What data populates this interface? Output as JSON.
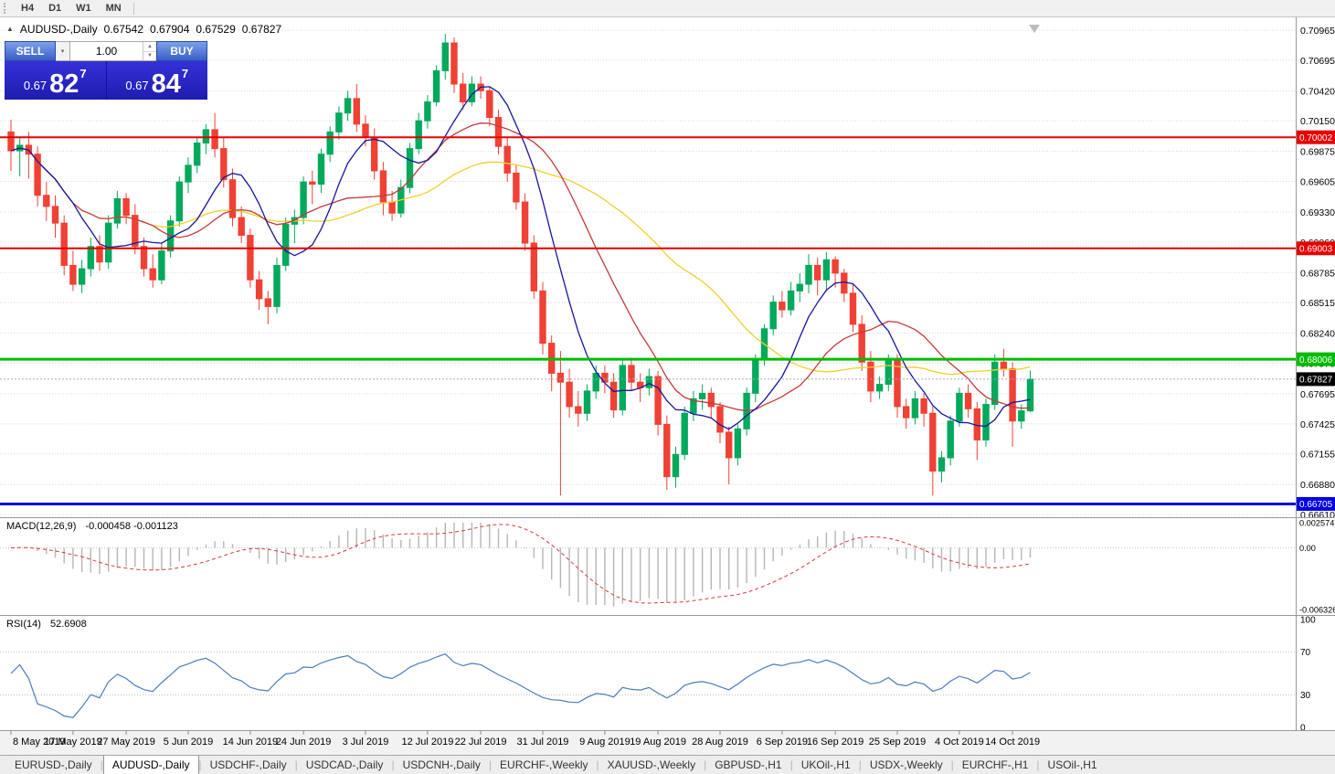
{
  "window": {
    "timeframes": [
      "H4",
      "D1",
      "W1",
      "MN"
    ]
  },
  "chart": {
    "symbol_label": "AUDUSD-,Daily",
    "ohlc": {
      "open": "0.67542",
      "high": "0.67904",
      "low": "0.67529",
      "close": "0.67827"
    },
    "trade_panel": {
      "sell_label": "SELL",
      "buy_label": "BUY",
      "volume": "1.00",
      "sell_price_small": "0.67",
      "sell_price_big": "82",
      "sell_price_sup": "7",
      "buy_price_small": "0.67",
      "buy_price_big": "84",
      "buy_price_sup": "7"
    }
  },
  "chart_data": {
    "type": "candlestick",
    "symbol": "AUDUSD",
    "timeframe": "Daily",
    "title": "AUDUSD-,Daily 0.67542 0.67904 0.67529 0.67827",
    "current_price": 0.67827,
    "price_axis_labels": [
      "0.70965",
      "0.70695",
      "0.70420",
      "0.70150",
      "0.69875",
      "0.69605",
      "0.69330",
      "0.69060",
      "0.68785",
      "0.68515",
      "0.68240",
      "0.67970",
      "0.67695",
      "0.67425",
      "0.67155",
      "0.66880",
      "0.66610"
    ],
    "price_range": [
      0.6661,
      0.70965
    ],
    "horizontal_lines": [
      {
        "price": 0.70002,
        "color": "#e60000",
        "width": 2
      },
      {
        "price": 0.69003,
        "color": "#e60000",
        "width": 2
      },
      {
        "price": 0.68006,
        "color": "#00bb00",
        "width": 3
      },
      {
        "price": 0.66705,
        "color": "#0000e0",
        "width": 3
      }
    ],
    "moving_averages": [
      {
        "name": "slow",
        "period": 34,
        "color": "#f0d02c"
      },
      {
        "name": "medium",
        "period": 17,
        "color": "#c23b3b"
      },
      {
        "name": "fast",
        "period": 8,
        "color": "#16169e"
      }
    ],
    "date_axis": [
      {
        "label": "8 May 2019",
        "index": 0
      },
      {
        "label": "17 May 2019",
        "index": 7
      },
      {
        "label": "27 May 2019",
        "index": 13
      },
      {
        "label": "5 Jun 2019",
        "index": 20
      },
      {
        "label": "14 Jun 2019",
        "index": 27
      },
      {
        "label": "24 Jun 2019",
        "index": 33
      },
      {
        "label": "3 Jul 2019",
        "index": 40
      },
      {
        "label": "12 Jul 2019",
        "index": 47
      },
      {
        "label": "22 Jul 2019",
        "index": 53
      },
      {
        "label": "31 Jul 2019",
        "index": 60
      },
      {
        "label": "9 Aug 2019",
        "index": 67
      },
      {
        "label": "19 Aug 2019",
        "index": 73
      },
      {
        "label": "28 Aug 2019",
        "index": 80
      },
      {
        "label": "6 Sep 2019",
        "index": 87
      },
      {
        "label": "16 Sep 2019",
        "index": 93
      },
      {
        "label": "25 Sep 2019",
        "index": 100
      },
      {
        "label": "4 Oct 2019",
        "index": 107
      },
      {
        "label": "14 Oct 2019",
        "index": 113
      }
    ],
    "candles": [
      [
        "2019-05-08",
        0.7005,
        0.7016,
        0.697,
        0.6988
      ],
      [
        "2019-05-09",
        0.6988,
        0.7,
        0.6965,
        0.6993
      ],
      [
        "2019-05-10",
        0.6993,
        0.7005,
        0.6963,
        0.6985
      ],
      [
        "2019-05-13",
        0.6985,
        0.6992,
        0.6938,
        0.6948
      ],
      [
        "2019-05-14",
        0.6948,
        0.696,
        0.6925,
        0.6938
      ],
      [
        "2019-05-15",
        0.6938,
        0.6948,
        0.691,
        0.6923
      ],
      [
        "2019-05-16",
        0.6923,
        0.693,
        0.6876,
        0.6885
      ],
      [
        "2019-05-17",
        0.6885,
        0.6898,
        0.6862,
        0.6868
      ],
      [
        "2019-05-20",
        0.6868,
        0.689,
        0.686,
        0.6882
      ],
      [
        "2019-05-21",
        0.6882,
        0.691,
        0.6875,
        0.6902
      ],
      [
        "2019-05-22",
        0.6902,
        0.6912,
        0.688,
        0.6888
      ],
      [
        "2019-05-23",
        0.6888,
        0.693,
        0.6882,
        0.6923
      ],
      [
        "2019-05-24",
        0.6923,
        0.6952,
        0.6918,
        0.6945
      ],
      [
        "2019-05-27",
        0.6945,
        0.695,
        0.6922,
        0.693
      ],
      [
        "2019-05-28",
        0.693,
        0.694,
        0.6895,
        0.6902
      ],
      [
        "2019-05-29",
        0.6902,
        0.691,
        0.6875,
        0.6882
      ],
      [
        "2019-05-30",
        0.6882,
        0.6895,
        0.6865,
        0.6872
      ],
      [
        "2019-05-31",
        0.6872,
        0.6905,
        0.6868,
        0.6898
      ],
      [
        "2019-06-03",
        0.6898,
        0.693,
        0.6892,
        0.6925
      ],
      [
        "2019-06-04",
        0.6925,
        0.6965,
        0.692,
        0.696
      ],
      [
        "2019-06-05",
        0.696,
        0.6982,
        0.695,
        0.6975
      ],
      [
        "2019-06-06",
        0.6975,
        0.7,
        0.6968,
        0.6995
      ],
      [
        "2019-06-07",
        0.6995,
        0.7012,
        0.6985,
        0.7007
      ],
      [
        "2019-06-10",
        0.7007,
        0.7022,
        0.6982,
        0.699
      ],
      [
        "2019-06-11",
        0.699,
        0.7,
        0.6955,
        0.6962
      ],
      [
        "2019-06-12",
        0.6962,
        0.6972,
        0.692,
        0.6928
      ],
      [
        "2019-06-13",
        0.6928,
        0.6938,
        0.6905,
        0.6912
      ],
      [
        "2019-06-14",
        0.6912,
        0.6918,
        0.6865,
        0.6872
      ],
      [
        "2019-06-17",
        0.6872,
        0.688,
        0.6845,
        0.6855
      ],
      [
        "2019-06-18",
        0.6855,
        0.6862,
        0.6832,
        0.6848
      ],
      [
        "2019-06-19",
        0.6848,
        0.6892,
        0.6842,
        0.6885
      ],
      [
        "2019-06-20",
        0.6885,
        0.6928,
        0.688,
        0.6922
      ],
      [
        "2019-06-21",
        0.6922,
        0.6935,
        0.6905,
        0.6928
      ],
      [
        "2019-06-24",
        0.6928,
        0.6965,
        0.6922,
        0.696
      ],
      [
        "2019-06-25",
        0.696,
        0.697,
        0.694,
        0.6958
      ],
      [
        "2019-06-26",
        0.6958,
        0.699,
        0.695,
        0.6985
      ],
      [
        "2019-06-27",
        0.6985,
        0.701,
        0.6978,
        0.7005
      ],
      [
        "2019-06-28",
        0.7005,
        0.7028,
        0.6998,
        0.7022
      ],
      [
        "2019-07-01",
        0.7022,
        0.7042,
        0.7015,
        0.7035
      ],
      [
        "2019-07-02",
        0.7035,
        0.7048,
        0.7005,
        0.7012
      ],
      [
        "2019-07-03",
        0.7012,
        0.702,
        0.6992,
        0.7
      ],
      [
        "2019-07-04",
        0.7,
        0.7008,
        0.6962,
        0.697
      ],
      [
        "2019-07-05",
        0.697,
        0.6978,
        0.693,
        0.6942
      ],
      [
        "2019-07-08",
        0.6942,
        0.6952,
        0.6925,
        0.6932
      ],
      [
        "2019-07-09",
        0.6932,
        0.6962,
        0.6928,
        0.6955
      ],
      [
        "2019-07-10",
        0.6955,
        0.6995,
        0.695,
        0.699
      ],
      [
        "2019-07-11",
        0.699,
        0.7022,
        0.6985,
        0.7015
      ],
      [
        "2019-07-12",
        0.7015,
        0.7038,
        0.7008,
        0.7032
      ],
      [
        "2019-07-15",
        0.7032,
        0.7065,
        0.7028,
        0.706
      ],
      [
        "2019-07-16",
        0.706,
        0.7093,
        0.7052,
        0.7085
      ],
      [
        "2019-07-17",
        0.7085,
        0.709,
        0.704,
        0.7048
      ],
      [
        "2019-07-18",
        0.7048,
        0.7058,
        0.7025,
        0.7032
      ],
      [
        "2019-07-19",
        0.7032,
        0.7055,
        0.7028,
        0.7048
      ],
      [
        "2019-07-22",
        0.7048,
        0.7055,
        0.7035,
        0.7042
      ],
      [
        "2019-07-23",
        0.7042,
        0.7046,
        0.701,
        0.7018
      ],
      [
        "2019-07-24",
        0.7018,
        0.7025,
        0.6985,
        0.6992
      ],
      [
        "2019-07-25",
        0.6992,
        0.7,
        0.696,
        0.6968
      ],
      [
        "2019-07-26",
        0.6968,
        0.6975,
        0.6935,
        0.6942
      ],
      [
        "2019-07-29",
        0.6942,
        0.695,
        0.6898,
        0.6905
      ],
      [
        "2019-07-30",
        0.6905,
        0.6912,
        0.6855,
        0.6862
      ],
      [
        "2019-07-31",
        0.6862,
        0.687,
        0.6805,
        0.6815
      ],
      [
        "2019-08-01",
        0.6815,
        0.6822,
        0.6772,
        0.6788
      ],
      [
        "2019-08-02",
        0.6788,
        0.6808,
        0.6678,
        0.678
      ],
      [
        "2019-08-05",
        0.678,
        0.6792,
        0.6748,
        0.6758
      ],
      [
        "2019-08-06",
        0.6758,
        0.6772,
        0.674,
        0.6752
      ],
      [
        "2019-08-07",
        0.6752,
        0.6778,
        0.6745,
        0.6772
      ],
      [
        "2019-08-08",
        0.6772,
        0.6795,
        0.6765,
        0.6788
      ],
      [
        "2019-08-09",
        0.6788,
        0.6795,
        0.677,
        0.678
      ],
      [
        "2019-08-12",
        0.678,
        0.6788,
        0.6748,
        0.6755
      ],
      [
        "2019-08-13",
        0.6755,
        0.68,
        0.675,
        0.6795
      ],
      [
        "2019-08-14",
        0.6795,
        0.6802,
        0.6772,
        0.678
      ],
      [
        "2019-08-15",
        0.678,
        0.6788,
        0.6762,
        0.6775
      ],
      [
        "2019-08-16",
        0.6775,
        0.6792,
        0.6768,
        0.6785
      ],
      [
        "2019-08-19",
        0.6785,
        0.679,
        0.6732,
        0.6742
      ],
      [
        "2019-08-20",
        0.6742,
        0.675,
        0.6683,
        0.6695
      ],
      [
        "2019-08-21",
        0.6695,
        0.6722,
        0.6685,
        0.6715
      ],
      [
        "2019-08-22",
        0.6715,
        0.6758,
        0.671,
        0.6752
      ],
      [
        "2019-08-23",
        0.6752,
        0.6772,
        0.6745,
        0.6765
      ],
      [
        "2019-08-26",
        0.6765,
        0.6778,
        0.6755,
        0.677
      ],
      [
        "2019-08-27",
        0.677,
        0.6775,
        0.6748,
        0.6758
      ],
      [
        "2019-08-28",
        0.6758,
        0.6762,
        0.6725,
        0.6735
      ],
      [
        "2019-08-29",
        0.6735,
        0.674,
        0.6688,
        0.6712
      ],
      [
        "2019-08-30",
        0.6712,
        0.6742,
        0.6705,
        0.6738
      ],
      [
        "2019-09-02",
        0.6738,
        0.6775,
        0.6732,
        0.677
      ],
      [
        "2019-09-03",
        0.677,
        0.6805,
        0.6762,
        0.68
      ],
      [
        "2019-09-04",
        0.68,
        0.6832,
        0.6795,
        0.6828
      ],
      [
        "2019-09-05",
        0.6828,
        0.6858,
        0.6822,
        0.6852
      ],
      [
        "2019-09-06",
        0.6852,
        0.6862,
        0.6838,
        0.6845
      ],
      [
        "2019-09-09",
        0.6845,
        0.687,
        0.684,
        0.6862
      ],
      [
        "2019-09-10",
        0.6862,
        0.6878,
        0.6852,
        0.6868
      ],
      [
        "2019-09-11",
        0.6868,
        0.6895,
        0.686,
        0.6885
      ],
      [
        "2019-09-12",
        0.6885,
        0.6892,
        0.6858,
        0.6872
      ],
      [
        "2019-09-13",
        0.6872,
        0.6897,
        0.6862,
        0.689
      ],
      [
        "2019-09-16",
        0.689,
        0.6893,
        0.6865,
        0.6878
      ],
      [
        "2019-09-17",
        0.6878,
        0.6882,
        0.6852,
        0.686
      ],
      [
        "2019-09-18",
        0.686,
        0.6868,
        0.6825,
        0.6832
      ],
      [
        "2019-09-19",
        0.6832,
        0.684,
        0.679,
        0.6798
      ],
      [
        "2019-09-20",
        0.6798,
        0.6808,
        0.6762,
        0.6772
      ],
      [
        "2019-09-23",
        0.6772,
        0.6785,
        0.6765,
        0.6778
      ],
      [
        "2019-09-24",
        0.6778,
        0.6805,
        0.6772,
        0.68
      ],
      [
        "2019-09-25",
        0.68,
        0.6805,
        0.6748,
        0.6758
      ],
      [
        "2019-09-26",
        0.6758,
        0.6765,
        0.6738,
        0.6748
      ],
      [
        "2019-09-27",
        0.6748,
        0.6772,
        0.6742,
        0.6765
      ],
      [
        "2019-09-30",
        0.6765,
        0.677,
        0.674,
        0.6752
      ],
      [
        "2019-10-01",
        0.6752,
        0.6758,
        0.6678,
        0.67
      ],
      [
        "2019-10-02",
        0.67,
        0.6718,
        0.669,
        0.6712
      ],
      [
        "2019-10-03",
        0.6712,
        0.675,
        0.6705,
        0.6745
      ],
      [
        "2019-10-04",
        0.6745,
        0.6775,
        0.674,
        0.677
      ],
      [
        "2019-10-07",
        0.677,
        0.6778,
        0.6748,
        0.6756
      ],
      [
        "2019-10-08",
        0.6756,
        0.6762,
        0.671,
        0.6728
      ],
      [
        "2019-10-09",
        0.6728,
        0.6765,
        0.6722,
        0.676
      ],
      [
        "2019-10-10",
        0.676,
        0.6805,
        0.6755,
        0.6798
      ],
      [
        "2019-10-11",
        0.6798,
        0.681,
        0.6785,
        0.6792
      ],
      [
        "2019-10-14",
        0.6792,
        0.6798,
        0.6722,
        0.6745
      ],
      [
        "2019-10-15",
        0.6745,
        0.676,
        0.6738,
        0.67542
      ],
      [
        "2019-10-16",
        0.67542,
        0.67904,
        0.67529,
        0.67827
      ]
    ],
    "indicators": {
      "macd": {
        "label": "MACD(12,26,9)",
        "values": "-0.000458 -0.001123",
        "params": [
          12,
          26,
          9
        ],
        "scale": [
          "0.002574",
          "0.00",
          "-0.006326"
        ]
      },
      "rsi": {
        "label": "RSI(14)",
        "value": "52.6908",
        "period": 14,
        "levels": [
          70,
          30
        ],
        "scale": [
          "100",
          "70",
          "30",
          "0"
        ]
      }
    }
  },
  "colors": {
    "candle_up": "#00a95c",
    "candle_down": "#ef4135",
    "grid": "#d8d8d8",
    "macd_hist": "#b6b6b6",
    "macd_signal": "#d43d3d",
    "rsi_line": "#4b7dbb",
    "current_price_tag": "#000000",
    "trade_panel_blue": "#2b28cc"
  },
  "tabs": [
    {
      "label": "EURUSD-,Daily",
      "active": false
    },
    {
      "label": "AUDUSD-,Daily",
      "active": true
    },
    {
      "label": "USDCHF-,Daily",
      "active": false
    },
    {
      "label": "USDCAD-,Daily",
      "active": false
    },
    {
      "label": "USDCNH-,Daily",
      "active": false
    },
    {
      "label": "EURCHF-,Weekly",
      "active": false
    },
    {
      "label": "XAUUSD-,Weekly",
      "active": false
    },
    {
      "label": "GBPUSD-,H1",
      "active": false
    },
    {
      "label": "UKOil-,H1",
      "active": false
    },
    {
      "label": "USDX-,Weekly",
      "active": false
    },
    {
      "label": "EURCHF-,H1",
      "active": false
    },
    {
      "label": "USOil-,H1",
      "active": false
    }
  ]
}
